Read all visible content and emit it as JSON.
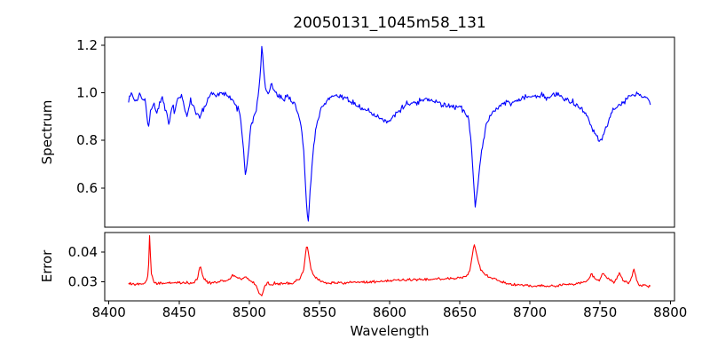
{
  "chart_data": {
    "type": "line",
    "title": "20050131_1045m58_131",
    "xlabel": "Wavelength",
    "xlim": [
      8397,
      8803
    ],
    "xticks": [
      8400,
      8450,
      8500,
      8550,
      8600,
      8650,
      8700,
      8750,
      8800
    ],
    "xtick_labels": [
      "8400",
      "8450",
      "8500",
      "8550",
      "8600",
      "8650",
      "8700",
      "8750",
      "8800"
    ],
    "grid": false,
    "legend": "none",
    "noise_seed": 1337,
    "panels": [
      {
        "key": "top",
        "ylabel": "Spectrum",
        "ylim": [
          0.435,
          1.234
        ],
        "yticks": [
          0.6,
          0.8,
          1.0,
          1.2
        ],
        "ytick_labels": [
          "0.6",
          "0.8",
          "1.0",
          "1.2"
        ],
        "show_xticklabels": false,
        "series": {
          "name": "spectrum",
          "color": "#0000ff",
          "noise_amp": 0.016,
          "sample_step": 0.65,
          "anchors": [
            [
              8414,
              0.97
            ],
            [
              8416,
              1.0
            ],
            [
              8419,
              0.96
            ],
            [
              8422,
              1.0
            ],
            [
              8424,
              0.97
            ],
            [
              8426,
              0.98
            ],
            [
              8428,
              0.85
            ],
            [
              8430,
              0.93
            ],
            [
              8432,
              0.97
            ],
            [
              8434,
              0.91
            ],
            [
              8436,
              0.96
            ],
            [
              8438,
              0.98
            ],
            [
              8440,
              0.93
            ],
            [
              8443,
              0.87
            ],
            [
              8445,
              0.95
            ],
            [
              8447,
              0.92
            ],
            [
              8449,
              0.98
            ],
            [
              8452,
              0.99
            ],
            [
              8454,
              0.93
            ],
            [
              8456,
              0.9
            ],
            [
              8458,
              0.97
            ],
            [
              8460,
              0.95
            ],
            [
              8462,
              0.92
            ],
            [
              8465,
              0.9
            ],
            [
              8467,
              0.93
            ],
            [
              8469,
              0.94
            ],
            [
              8471,
              0.99
            ],
            [
              8474,
              1.0
            ],
            [
              8477,
              0.99
            ],
            [
              8480,
              1.0
            ],
            [
              8483,
              0.99
            ],
            [
              8486,
              0.98
            ],
            [
              8489,
              0.96
            ],
            [
              8492,
              0.93
            ],
            [
              8494,
              0.89
            ],
            [
              8496,
              0.75
            ],
            [
              8497,
              0.655
            ],
            [
              8499,
              0.73
            ],
            [
              8501,
              0.86
            ],
            [
              8503,
              0.89
            ],
            [
              8505,
              0.93
            ],
            [
              8507,
              1.02
            ],
            [
              8508,
              1.1
            ],
            [
              8509,
              1.2
            ],
            [
              8510,
              1.12
            ],
            [
              8511,
              1.04
            ],
            [
              8513,
              1.0
            ],
            [
              8516,
              1.03
            ],
            [
              8518,
              1.01
            ],
            [
              8521,
              0.99
            ],
            [
              8524,
              0.97
            ],
            [
              8527,
              0.99
            ],
            [
              8530,
              0.97
            ],
            [
              8533,
              0.95
            ],
            [
              8535,
              0.91
            ],
            [
              8537,
              0.86
            ],
            [
              8539,
              0.74
            ],
            [
              8541,
              0.5
            ],
            [
              8542,
              0.46
            ],
            [
              8543,
              0.55
            ],
            [
              8545,
              0.72
            ],
            [
              8547,
              0.83
            ],
            [
              8550,
              0.91
            ],
            [
              8553,
              0.95
            ],
            [
              8556,
              0.98
            ],
            [
              8560,
              0.99
            ],
            [
              8563,
              0.98
            ],
            [
              8566,
              0.99
            ],
            [
              8570,
              0.97
            ],
            [
              8574,
              0.96
            ],
            [
              8578,
              0.94
            ],
            [
              8582,
              0.93
            ],
            [
              8586,
              0.92
            ],
            [
              8590,
              0.9
            ],
            [
              8594,
              0.89
            ],
            [
              8598,
              0.88
            ],
            [
              8602,
              0.9
            ],
            [
              8606,
              0.92
            ],
            [
              8610,
              0.94
            ],
            [
              8614,
              0.96
            ],
            [
              8618,
              0.96
            ],
            [
              8622,
              0.97
            ],
            [
              8626,
              0.97
            ],
            [
              8630,
              0.96
            ],
            [
              8634,
              0.96
            ],
            [
              8638,
              0.95
            ],
            [
              8642,
              0.95
            ],
            [
              8646,
              0.94
            ],
            [
              8650,
              0.94
            ],
            [
              8653,
              0.92
            ],
            [
              8656,
              0.89
            ],
            [
              8658,
              0.8
            ],
            [
              8660,
              0.62
            ],
            [
              8661,
              0.51
            ],
            [
              8662,
              0.56
            ],
            [
              8664,
              0.68
            ],
            [
              8666,
              0.78
            ],
            [
              8669,
              0.87
            ],
            [
              8672,
              0.91
            ],
            [
              8676,
              0.93
            ],
            [
              8680,
              0.95
            ],
            [
              8684,
              0.96
            ],
            [
              8688,
              0.96
            ],
            [
              8692,
              0.97
            ],
            [
              8696,
              0.98
            ],
            [
              8700,
              0.98
            ],
            [
              8704,
              0.99
            ],
            [
              8708,
              0.99
            ],
            [
              8712,
              0.98
            ],
            [
              8716,
              0.99
            ],
            [
              8720,
              0.99
            ],
            [
              8724,
              0.98
            ],
            [
              8728,
              0.97
            ],
            [
              8732,
              0.96
            ],
            [
              8736,
              0.94
            ],
            [
              8740,
              0.91
            ],
            [
              8744,
              0.86
            ],
            [
              8747,
              0.82
            ],
            [
              8750,
              0.795
            ],
            [
              8752,
              0.82
            ],
            [
              8755,
              0.87
            ],
            [
              8758,
              0.91
            ],
            [
              8761,
              0.94
            ],
            [
              8764,
              0.95
            ],
            [
              8768,
              0.97
            ],
            [
              8772,
              0.99
            ],
            [
              8776,
              1.0
            ],
            [
              8779,
              0.99
            ],
            [
              8782,
              0.98
            ],
            [
              8785,
              0.96
            ],
            [
              8786,
              0.93
            ]
          ]
        }
      },
      {
        "key": "bottom",
        "ylabel": "Error",
        "ylim": [
          0.0237,
          0.0465
        ],
        "yticks": [
          0.03,
          0.04
        ],
        "ytick_labels": [
          "0.03",
          "0.04"
        ],
        "show_xticklabels": true,
        "series": {
          "name": "error",
          "color": "#ff0000",
          "noise_amp": 0.00055,
          "sample_step": 0.65,
          "anchors": [
            [
              8414,
              0.0295
            ],
            [
              8420,
              0.0293
            ],
            [
              8426,
              0.0296
            ],
            [
              8428,
              0.032
            ],
            [
              8429,
              0.046
            ],
            [
              8430,
              0.033
            ],
            [
              8432,
              0.0298
            ],
            [
              8436,
              0.0294
            ],
            [
              8440,
              0.0297
            ],
            [
              8444,
              0.0296
            ],
            [
              8448,
              0.0299
            ],
            [
              8452,
              0.0297
            ],
            [
              8456,
              0.0298
            ],
            [
              8460,
              0.0299
            ],
            [
              8463,
              0.0308
            ],
            [
              8465,
              0.0358
            ],
            [
              8467,
              0.0315
            ],
            [
              8470,
              0.0299
            ],
            [
              8474,
              0.0297
            ],
            [
              8478,
              0.0301
            ],
            [
              8482,
              0.0305
            ],
            [
              8486,
              0.031
            ],
            [
              8489,
              0.0325
            ],
            [
              8491,
              0.0318
            ],
            [
              8493,
              0.0314
            ],
            [
              8495,
              0.031
            ],
            [
              8497,
              0.0316
            ],
            [
              8499,
              0.0312
            ],
            [
              8501,
              0.0305
            ],
            [
              8503,
              0.0298
            ],
            [
              8505,
              0.0288
            ],
            [
              8507,
              0.0262
            ],
            [
              8509,
              0.0255
            ],
            [
              8511,
              0.0287
            ],
            [
              8513,
              0.03
            ],
            [
              8515,
              0.029
            ],
            [
              8518,
              0.0296
            ],
            [
              8522,
              0.0294
            ],
            [
              8526,
              0.0297
            ],
            [
              8530,
              0.0295
            ],
            [
              8533,
              0.0303
            ],
            [
              8536,
              0.031
            ],
            [
              8539,
              0.0345
            ],
            [
              8541,
              0.0432
            ],
            [
              8542,
              0.04
            ],
            [
              8544,
              0.0345
            ],
            [
              8546,
              0.0322
            ],
            [
              8549,
              0.0308
            ],
            [
              8552,
              0.03
            ],
            [
              8556,
              0.0297
            ],
            [
              8560,
              0.0298
            ],
            [
              8564,
              0.0296
            ],
            [
              8568,
              0.0297
            ],
            [
              8572,
              0.0299
            ],
            [
              8576,
              0.0298
            ],
            [
              8580,
              0.0299
            ],
            [
              8584,
              0.03
            ],
            [
              8588,
              0.0301
            ],
            [
              8592,
              0.03
            ],
            [
              8596,
              0.0302
            ],
            [
              8600,
              0.0304
            ],
            [
              8604,
              0.0306
            ],
            [
              8608,
              0.0308
            ],
            [
              8612,
              0.0307
            ],
            [
              8616,
              0.0309
            ],
            [
              8620,
              0.0309
            ],
            [
              8624,
              0.0308
            ],
            [
              8628,
              0.031
            ],
            [
              8632,
              0.031
            ],
            [
              8636,
              0.0311
            ],
            [
              8640,
              0.031
            ],
            [
              8644,
              0.0312
            ],
            [
              8648,
              0.0313
            ],
            [
              8652,
              0.0316
            ],
            [
              8655,
              0.0322
            ],
            [
              8657,
              0.0335
            ],
            [
              8659,
              0.039
            ],
            [
              8660,
              0.0428
            ],
            [
              8661,
              0.0415
            ],
            [
              8663,
              0.037
            ],
            [
              8665,
              0.034
            ],
            [
              8668,
              0.0324
            ],
            [
              8671,
              0.0318
            ],
            [
              8675,
              0.031
            ],
            [
              8679,
              0.0302
            ],
            [
              8683,
              0.0297
            ],
            [
              8687,
              0.0293
            ],
            [
              8691,
              0.0291
            ],
            [
              8695,
              0.0289
            ],
            [
              8699,
              0.0288
            ],
            [
              8703,
              0.0286
            ],
            [
              8707,
              0.0287
            ],
            [
              8711,
              0.0288
            ],
            [
              8715,
              0.0287
            ],
            [
              8719,
              0.0286
            ],
            [
              8723,
              0.029
            ],
            [
              8727,
              0.0292
            ],
            [
              8731,
              0.0293
            ],
            [
              8735,
              0.0296
            ],
            [
              8739,
              0.0299
            ],
            [
              8742,
              0.031
            ],
            [
              8744,
              0.0328
            ],
            [
              8746,
              0.0312
            ],
            [
              8748,
              0.0304
            ],
            [
              8750,
              0.0306
            ],
            [
              8752,
              0.033
            ],
            [
              8754,
              0.0318
            ],
            [
              8757,
              0.0306
            ],
            [
              8760,
              0.03
            ],
            [
              8762,
              0.0316
            ],
            [
              8764,
              0.033
            ],
            [
              8766,
              0.0308
            ],
            [
              8768,
              0.03
            ],
            [
              8770,
              0.0296
            ],
            [
              8772,
              0.0308
            ],
            [
              8774,
              0.0345
            ],
            [
              8776,
              0.0304
            ],
            [
              8778,
              0.0292
            ],
            [
              8781,
              0.0289
            ],
            [
              8784,
              0.0287
            ],
            [
              8786,
              0.0284
            ]
          ]
        }
      }
    ]
  }
}
